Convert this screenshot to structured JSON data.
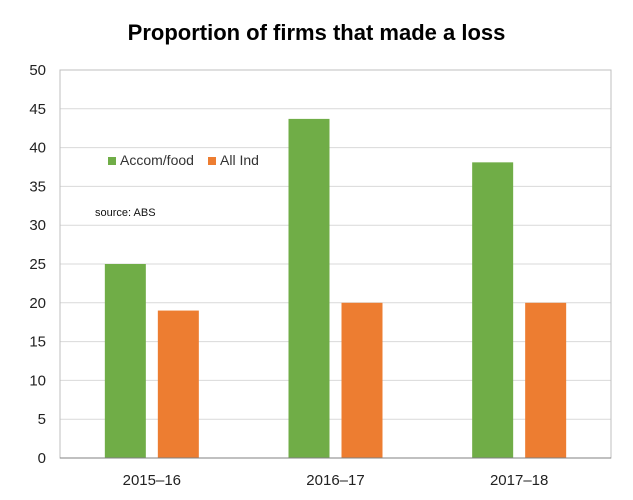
{
  "chart_data": {
    "type": "bar",
    "title": "Proportion of firms that made a loss",
    "categories": [
      "2015–16",
      "2016–17",
      "2017–18"
    ],
    "series": [
      {
        "name": "Accom/food",
        "color": "#70ad47",
        "values": [
          25,
          43.7,
          38.1
        ]
      },
      {
        "name": "All Ind",
        "color": "#ed7d31",
        "values": [
          19,
          20,
          20
        ]
      }
    ],
    "ylim": [
      0,
      50
    ],
    "yticks": [
      0,
      5,
      10,
      15,
      20,
      25,
      30,
      35,
      40,
      45,
      50
    ],
    "grid": true,
    "legend_placement": "top-left",
    "annotation": "source:  ABS"
  }
}
